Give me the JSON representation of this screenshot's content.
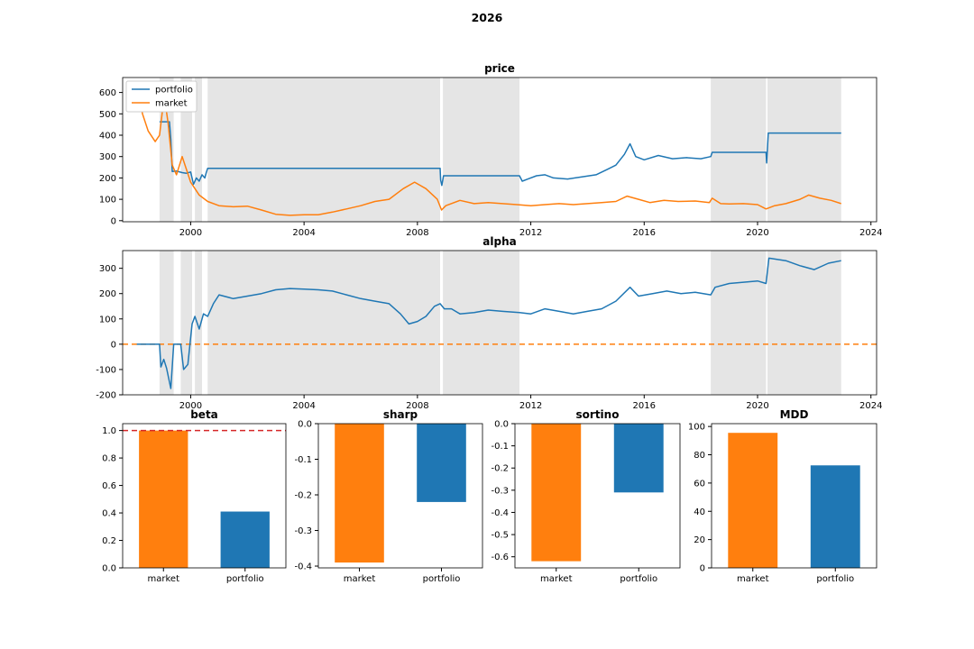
{
  "figure": {
    "suptitle": "2026"
  },
  "colors": {
    "portfolio": "#1f77b4",
    "market": "#ff7f0e",
    "shade": "#e5e5e5",
    "beta_ref": "#d62728",
    "zero_ref": "#ff7f0e"
  },
  "chart_data": [
    {
      "id": "price",
      "type": "line",
      "title": "price",
      "xlim": [
        1997.6,
        2024.2
      ],
      "ylim": [
        -5,
        670
      ],
      "xticks": [
        "2000",
        "2004",
        "2008",
        "2012",
        "2016",
        "2020",
        "2024"
      ],
      "yticks": [
        "0",
        "100",
        "200",
        "300",
        "400",
        "500",
        "600"
      ],
      "legend": {
        "placement": "upper-left",
        "entries": [
          "portfolio",
          "market"
        ]
      },
      "shaded_periods": [
        [
          1998.9,
          1999.4
        ],
        [
          1999.65,
          2000.05
        ],
        [
          2000.15,
          2000.4
        ],
        [
          2000.6,
          2008.8
        ],
        [
          2008.9,
          2011.6
        ],
        [
          2018.35,
          2020.3
        ],
        [
          2020.35,
          2022.95
        ]
      ],
      "series": [
        {
          "name": "portfolio",
          "points": [
            [
              1998.9,
              463
            ],
            [
              1999.25,
              463
            ],
            [
              1999.3,
              380
            ],
            [
              1999.35,
              230
            ],
            [
              1999.5,
              232
            ],
            [
              1999.7,
              225
            ],
            [
              1999.85,
              222
            ],
            [
              2000.0,
              228
            ],
            [
              2000.1,
              170
            ],
            [
              2000.2,
              200
            ],
            [
              2000.3,
              185
            ],
            [
              2000.4,
              215
            ],
            [
              2000.5,
              200
            ],
            [
              2000.55,
              225
            ],
            [
              2000.6,
              245
            ],
            [
              2008.8,
              245
            ],
            [
              2008.82,
              190
            ],
            [
              2008.86,
              165
            ],
            [
              2008.92,
              210
            ],
            [
              2011.6,
              210
            ],
            [
              2011.7,
              185
            ],
            [
              2011.9,
              195
            ],
            [
              2012.2,
              210
            ],
            [
              2012.5,
              215
            ],
            [
              2012.8,
              200
            ],
            [
              2013.3,
              195
            ],
            [
              2013.8,
              205
            ],
            [
              2014.3,
              215
            ],
            [
              2014.7,
              240
            ],
            [
              2015.0,
              260
            ],
            [
              2015.3,
              310
            ],
            [
              2015.5,
              360
            ],
            [
              2015.7,
              300
            ],
            [
              2016.0,
              285
            ],
            [
              2016.5,
              305
            ],
            [
              2017.0,
              290
            ],
            [
              2017.5,
              295
            ],
            [
              2018.0,
              290
            ],
            [
              2018.35,
              300
            ],
            [
              2018.4,
              320
            ],
            [
              2020.3,
              320
            ],
            [
              2020.32,
              270
            ],
            [
              2020.38,
              410
            ],
            [
              2022.95,
              410
            ]
          ]
        },
        {
          "name": "market",
          "points": [
            [
              1998.1,
              640
            ],
            [
              1998.3,
              500
            ],
            [
              1998.5,
              420
            ],
            [
              1998.75,
              370
            ],
            [
              1998.9,
              400
            ],
            [
              1999.0,
              510
            ],
            [
              1999.1,
              555
            ],
            [
              1999.2,
              460
            ],
            [
              1999.35,
              260
            ],
            [
              1999.5,
              215
            ],
            [
              1999.7,
              300
            ],
            [
              1999.85,
              240
            ],
            [
              2000.0,
              180
            ],
            [
              2000.3,
              120
            ],
            [
              2000.6,
              90
            ],
            [
              2001.0,
              70
            ],
            [
              2001.5,
              65
            ],
            [
              2002.0,
              68
            ],
            [
              2002.5,
              50
            ],
            [
              2003.0,
              30
            ],
            [
              2003.5,
              25
            ],
            [
              2004.0,
              28
            ],
            [
              2004.5,
              28
            ],
            [
              2005.0,
              40
            ],
            [
              2005.5,
              55
            ],
            [
              2006.0,
              70
            ],
            [
              2006.5,
              90
            ],
            [
              2007.0,
              100
            ],
            [
              2007.5,
              150
            ],
            [
              2007.9,
              180
            ],
            [
              2008.3,
              150
            ],
            [
              2008.7,
              100
            ],
            [
              2008.85,
              50
            ],
            [
              2009.0,
              70
            ],
            [
              2009.5,
              95
            ],
            [
              2010.0,
              80
            ],
            [
              2010.5,
              85
            ],
            [
              2011.0,
              80
            ],
            [
              2011.5,
              75
            ],
            [
              2012.0,
              70
            ],
            [
              2012.5,
              75
            ],
            [
              2013.0,
              80
            ],
            [
              2013.5,
              75
            ],
            [
              2014.0,
              80
            ],
            [
              2014.5,
              85
            ],
            [
              2015.0,
              90
            ],
            [
              2015.4,
              115
            ],
            [
              2015.8,
              100
            ],
            [
              2016.2,
              85
            ],
            [
              2016.7,
              95
            ],
            [
              2017.2,
              90
            ],
            [
              2017.8,
              92
            ],
            [
              2018.3,
              85
            ],
            [
              2018.4,
              105
            ],
            [
              2018.7,
              80
            ],
            [
              2019.0,
              78
            ],
            [
              2019.5,
              80
            ],
            [
              2020.0,
              75
            ],
            [
              2020.3,
              55
            ],
            [
              2020.6,
              70
            ],
            [
              2021.0,
              80
            ],
            [
              2021.5,
              100
            ],
            [
              2021.8,
              120
            ],
            [
              2022.2,
              105
            ],
            [
              2022.6,
              95
            ],
            [
              2022.95,
              80
            ]
          ]
        }
      ]
    },
    {
      "id": "alpha",
      "type": "line",
      "title": "alpha",
      "xlim": [
        1997.6,
        2024.2
      ],
      "ylim": [
        -200,
        370
      ],
      "xticks": [
        "2000",
        "2004",
        "2008",
        "2012",
        "2016",
        "2020",
        "2024"
      ],
      "yticks": [
        "-200",
        "-100",
        "0",
        "100",
        "200",
        "300"
      ],
      "reference_line": 0,
      "shaded_periods": [
        [
          1998.9,
          1999.4
        ],
        [
          1999.65,
          2000.05
        ],
        [
          2000.15,
          2000.4
        ],
        [
          2000.6,
          2008.8
        ],
        [
          2008.9,
          2011.6
        ],
        [
          2018.35,
          2020.3
        ],
        [
          2020.35,
          2022.95
        ]
      ],
      "series": [
        {
          "name": "portfolio",
          "points": [
            [
              1998.1,
              0
            ],
            [
              1998.9,
              0
            ],
            [
              1998.95,
              -90
            ],
            [
              1999.05,
              -60
            ],
            [
              1999.15,
              -95
            ],
            [
              1999.3,
              -175
            ],
            [
              1999.4,
              0
            ],
            [
              1999.65,
              0
            ],
            [
              1999.75,
              -100
            ],
            [
              1999.9,
              -80
            ],
            [
              2000.05,
              80
            ],
            [
              2000.15,
              110
            ],
            [
              2000.3,
              60
            ],
            [
              2000.45,
              120
            ],
            [
              2000.6,
              110
            ],
            [
              2000.8,
              160
            ],
            [
              2001.0,
              195
            ],
            [
              2001.5,
              180
            ],
            [
              2002.0,
              190
            ],
            [
              2002.5,
              200
            ],
            [
              2003.0,
              215
            ],
            [
              2003.5,
              220
            ],
            [
              2004.0,
              218
            ],
            [
              2004.5,
              215
            ],
            [
              2005.0,
              210
            ],
            [
              2005.5,
              195
            ],
            [
              2006.0,
              180
            ],
            [
              2006.5,
              170
            ],
            [
              2007.0,
              160
            ],
            [
              2007.4,
              120
            ],
            [
              2007.7,
              80
            ],
            [
              2008.0,
              90
            ],
            [
              2008.3,
              110
            ],
            [
              2008.6,
              150
            ],
            [
              2008.8,
              160
            ],
            [
              2008.95,
              140
            ],
            [
              2009.2,
              140
            ],
            [
              2009.5,
              120
            ],
            [
              2010.0,
              125
            ],
            [
              2010.5,
              135
            ],
            [
              2011.0,
              130
            ],
            [
              2011.6,
              125
            ],
            [
              2012.0,
              120
            ],
            [
              2012.5,
              140
            ],
            [
              2013.0,
              130
            ],
            [
              2013.5,
              120
            ],
            [
              2014.0,
              130
            ],
            [
              2014.5,
              140
            ],
            [
              2015.0,
              170
            ],
            [
              2015.5,
              225
            ],
            [
              2015.8,
              190
            ],
            [
              2016.3,
              200
            ],
            [
              2016.8,
              210
            ],
            [
              2017.3,
              200
            ],
            [
              2017.8,
              205
            ],
            [
              2018.35,
              195
            ],
            [
              2018.5,
              225
            ],
            [
              2019.0,
              240
            ],
            [
              2019.5,
              245
            ],
            [
              2020.0,
              250
            ],
            [
              2020.3,
              240
            ],
            [
              2020.4,
              340
            ],
            [
              2021.0,
              330
            ],
            [
              2021.5,
              310
            ],
            [
              2022.0,
              295
            ],
            [
              2022.5,
              320
            ],
            [
              2022.95,
              330
            ]
          ]
        }
      ]
    },
    {
      "id": "beta",
      "type": "bar",
      "title": "beta",
      "categories": [
        "market",
        "portfolio"
      ],
      "values": [
        1.0,
        0.41
      ],
      "ylim": [
        0,
        1.05
      ],
      "yticks": [
        "0.0",
        "0.2",
        "0.4",
        "0.6",
        "0.8",
        "1.0"
      ],
      "reference_line": 1.0
    },
    {
      "id": "sharp",
      "type": "bar",
      "title": "sharp",
      "categories": [
        "market",
        "portfolio"
      ],
      "values": [
        -0.39,
        -0.22
      ],
      "ylim": [
        -0.405,
        0
      ],
      "yticks": [
        "0.0",
        "-0.1",
        "-0.2",
        "-0.3",
        "-0.4"
      ]
    },
    {
      "id": "sortino",
      "type": "bar",
      "title": "sortino",
      "categories": [
        "market",
        "portfolio"
      ],
      "values": [
        -0.62,
        -0.31
      ],
      "ylim": [
        -0.65,
        0
      ],
      "yticks": [
        "0.0",
        "-0.1",
        "-0.2",
        "-0.3",
        "-0.4",
        "-0.5",
        "-0.6"
      ]
    },
    {
      "id": "MDD",
      "type": "bar",
      "title": "MDD",
      "categories": [
        "market",
        "portfolio"
      ],
      "values": [
        95.5,
        72.5
      ],
      "ylim": [
        0,
        102
      ],
      "yticks": [
        "0",
        "20",
        "40",
        "60",
        "80",
        "100"
      ]
    }
  ]
}
